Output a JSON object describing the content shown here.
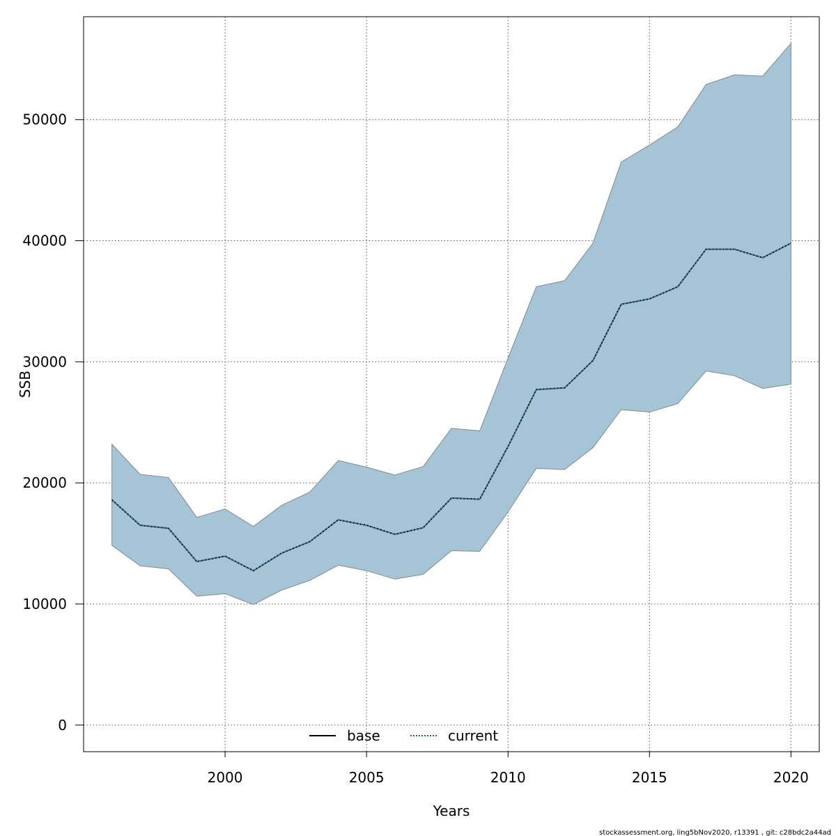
{
  "chart_data": {
    "type": "area",
    "title": "",
    "xlabel": "Years",
    "ylabel": "SSB",
    "xlim": [
      1995,
      2021
    ],
    "ylim": [
      -2200,
      58500
    ],
    "x_ticks": [
      2000,
      2005,
      2010,
      2015,
      2020
    ],
    "y_ticks": [
      0,
      10000,
      20000,
      30000,
      40000,
      50000
    ],
    "grid": true,
    "legend_position": "bottom-center",
    "band_color": "#a5c4d5",
    "band_edge_color": "#7f8a92",
    "x": [
      1996,
      1997,
      1998,
      1999,
      2000,
      2001,
      2002,
      2003,
      2004,
      2005,
      2006,
      2007,
      2008,
      2009,
      2010,
      2011,
      2012,
      2013,
      2014,
      2015,
      2016,
      2017,
      2018,
      2019,
      2020
    ],
    "upper": [
      23200,
      20700,
      20450,
      17150,
      17850,
      16400,
      18150,
      19250,
      21850,
      21300,
      20650,
      21350,
      24500,
      24300,
      30300,
      36200,
      36700,
      39800,
      46500,
      47900,
      49400,
      52900,
      53700,
      53600,
      56300
    ],
    "lower": [
      14850,
      13150,
      12900,
      10650,
      10850,
      9950,
      11150,
      11950,
      13200,
      12750,
      12050,
      12450,
      14400,
      14350,
      17600,
      21200,
      21100,
      22900,
      26050,
      25850,
      26550,
      29250,
      28850,
      27800,
      28150
    ],
    "series": [
      {
        "name": "base",
        "line_style": "solid",
        "color": "#000000",
        "values": [
          18600,
          16500,
          16250,
          13500,
          13950,
          12750,
          14200,
          15150,
          16950,
          16500,
          15750,
          16300,
          18750,
          18650,
          23000,
          27700,
          27850,
          30100,
          34750,
          35200,
          36200,
          39300,
          39300,
          38600,
          39800
        ]
      },
      {
        "name": "current",
        "line_style": "dotted",
        "color": "#1f5f8b",
        "values": [
          18600,
          16500,
          16250,
          13500,
          13950,
          12750,
          14200,
          15150,
          16950,
          16500,
          15750,
          16300,
          18750,
          18650,
          23000,
          27700,
          27850,
          30100,
          34750,
          35200,
          36200,
          39300,
          39300,
          38600,
          39800
        ]
      }
    ]
  },
  "footer": {
    "note": "stockassessment.org, ling5bNov2020, r13391 , git: c28bdc2a44ad"
  }
}
